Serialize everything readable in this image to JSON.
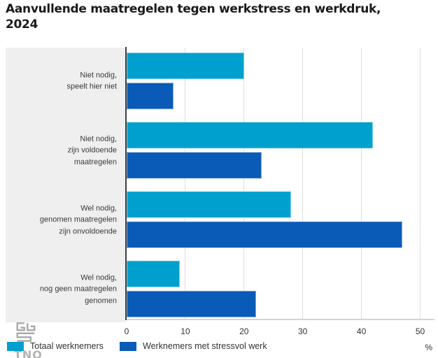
{
  "title": "Aanvullende maatregelen tegen werkstress en werkdruk,\n2024",
  "chart_data": {
    "type": "bar",
    "orientation": "horizontal",
    "title": "Aanvullende maatregelen tegen werkstress en werkdruk, 2024",
    "categories": [
      "Niet nodig,\nspeelt hier niet",
      "Niet nodig,\nzijn voldoende\nmaatregelen",
      "Wel nodig,\ngenomen maatregelen\nzijn onvoldoende",
      "Wel nodig,\nnog geen maatregelen\ngenomen"
    ],
    "series": [
      {
        "name": "Totaal werknemers",
        "color": "#00a0ce",
        "values": [
          20,
          42,
          28,
          9
        ]
      },
      {
        "name": "Werknemers met stressvol werk",
        "color": "#0a5bb8",
        "values": [
          8,
          23,
          47,
          22
        ]
      }
    ],
    "xlim": [
      0,
      53
    ],
    "xticks": [
      0,
      10,
      20,
      30,
      40,
      50
    ],
    "unit": "%",
    "grid": "vertical",
    "legend_position": "bottom"
  },
  "logos": {
    "cbs": "cbs-logo",
    "tno": "TNO"
  },
  "colors": {
    "series_total": "#00a0ce",
    "series_stress": "#0a5bb8",
    "panel_background": "#efefef",
    "gridline": "#dfdfdf",
    "axis": "#3f3f3f"
  }
}
